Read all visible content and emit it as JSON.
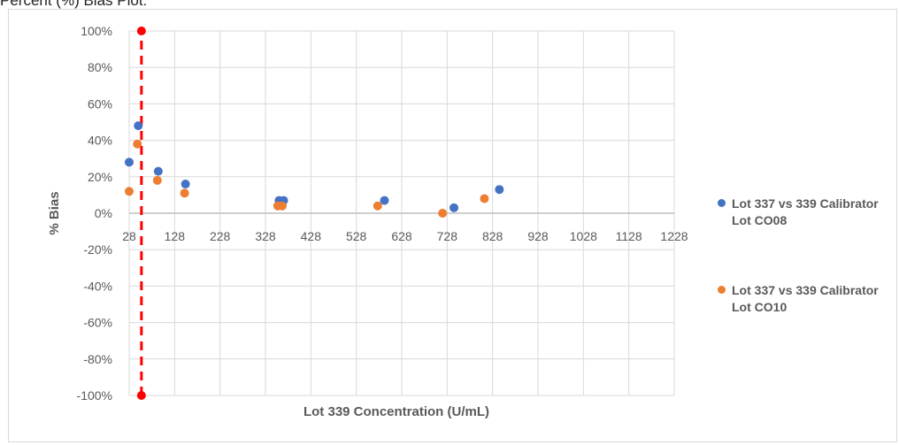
{
  "page": {
    "heading": "Percent (%) Bias Plot:"
  },
  "colors": {
    "series_1": "#4472c4",
    "series_2": "#ed7d31",
    "marker": "#ff0000",
    "grid": "#d9d9d9",
    "axis": "#bfbfbf",
    "text": "#595959"
  },
  "chart_data": {
    "type": "scatter",
    "xlabel": "Lot 339 Concentration (U/mL)",
    "ylabel": "% Bias",
    "xlim": [
      28,
      1228
    ],
    "ylim": [
      -100,
      100
    ],
    "x_ticks": [
      28,
      128,
      228,
      328,
      428,
      528,
      628,
      728,
      828,
      928,
      1028,
      1128,
      1228
    ],
    "y_ticks": [
      -100,
      -80,
      -60,
      -40,
      -20,
      0,
      20,
      40,
      60,
      80,
      100
    ],
    "y_tick_labels": [
      "-100%",
      "-80%",
      "-60%",
      "-40%",
      "-20%",
      "0%",
      "20%",
      "40%",
      "60%",
      "80%",
      "100%"
    ],
    "grid": true,
    "legend_position": "right",
    "series": [
      {
        "name": "Lot 337 vs 339 Calibrator Lot CO08",
        "color": "#4472c4",
        "points": [
          [
            28,
            28
          ],
          [
            48,
            48
          ],
          [
            92,
            23
          ],
          [
            152,
            16
          ],
          [
            358,
            7
          ],
          [
            368,
            7
          ],
          [
            590,
            7
          ],
          [
            743,
            3
          ],
          [
            843,
            13
          ]
        ]
      },
      {
        "name": "Lot 337 vs 339 Calibrator Lot CO10",
        "color": "#ed7d31",
        "points": [
          [
            28,
            12
          ],
          [
            46,
            38
          ],
          [
            90,
            18
          ],
          [
            150,
            11
          ],
          [
            355,
            4
          ],
          [
            365,
            4
          ],
          [
            575,
            4
          ],
          [
            718,
            0
          ],
          [
            810,
            8
          ]
        ]
      }
    ],
    "reference_line": {
      "x": 55,
      "y_range": [
        -100,
        100
      ],
      "style": "dashed",
      "color": "#ff0000"
    }
  }
}
